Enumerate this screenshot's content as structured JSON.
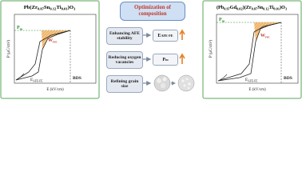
{
  "left_panel": {
    "title": "Pb(Zr0.87Sn0.12Ti0.01)O3",
    "y_axis_label": "P (μC/cm²)",
    "x_axis_label": "E (kV/cm)",
    "pm_label": "Pm",
    "wrec_label": "Wrec",
    "eafe_label": "EAFE-FE",
    "bds_label": "BDS"
  },
  "center": {
    "title": "Optimization of composition",
    "items": [
      {
        "cause": "Enhancing AFE stability",
        "effect": "EAFE-FE"
      },
      {
        "cause": "Reducing oxygen vacancies",
        "effect": "Pm"
      },
      {
        "cause": "Refining grain size"
      }
    ]
  },
  "right_panel": {
    "title": "(Pb0.97Gd0.02)(Zr0.87Sn0.12Ti0.01)O3",
    "y_axis_label": "P (μC/cm²)",
    "x_axis_label": "E (kV/cm)",
    "pm_label": "Pm",
    "wrec_label": "Wrec",
    "eafe_label": "EAFE-FE",
    "bds_label": "BDS"
  }
}
